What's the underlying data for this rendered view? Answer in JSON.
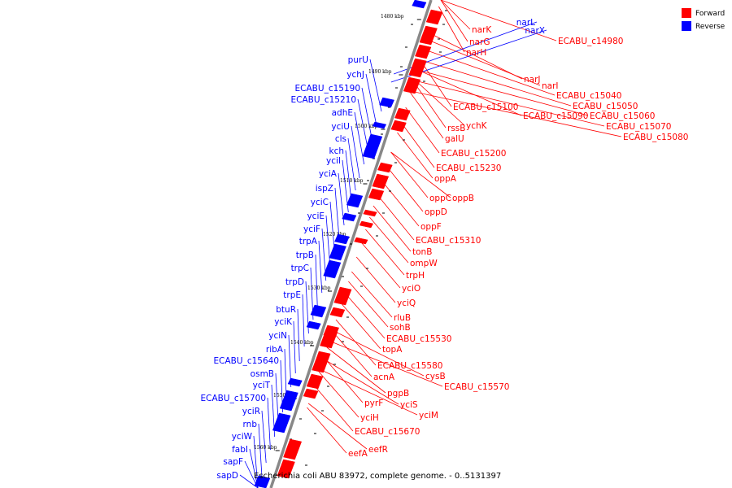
{
  "caption": "Escherichia coli ABU 83972, complete genome. - 0..5131397",
  "legend": [
    {
      "label": "Forward",
      "color": "#ff0000"
    },
    {
      "label": "Reverse",
      "color": "#0000ff"
    }
  ],
  "colors": {
    "forward": "#ff0000",
    "reverse": "#0000ff",
    "backbone": "#888888"
  },
  "ticks": [
    "1480 kbp",
    "1490 kbp",
    "1500 kbp",
    "1510 kbp",
    "1520 kbp",
    "1530 kbp",
    "1540 kbp",
    "1550 kbp",
    "1560 kbp"
  ],
  "forward_genes": [
    "narK",
    "narG",
    "narH",
    "narJ",
    "narI",
    "ECABU_c14980",
    "ECABU_c15040",
    "ECABU_c15050",
    "ECABU_c15060",
    "ECABU_c15070",
    "ECABU_c15080",
    "ECABU_c15090",
    "ECABU_c15100",
    "ychK",
    "rssB",
    "galU",
    "ECABU_c15200",
    "ECABU_c15230",
    "oppA",
    "oppB",
    "oppC",
    "oppD",
    "oppF",
    "ECABU_c15310",
    "tonB",
    "ompW",
    "trpH",
    "yciO",
    "yciQ",
    "rluB",
    "sohB",
    "ECABU_c15530",
    "topA",
    "ECABU_c15580",
    "cysB",
    "acnA",
    "ECABU_c15570",
    "pgpB",
    "yciS",
    "pyrF",
    "yciM",
    "yciH",
    "ECABU_c15670",
    "eefR",
    "eefA"
  ],
  "reverse_genes": [
    "narL",
    "narX",
    "purU",
    "ychJ",
    "ECABU_c15190",
    "ECABU_c15210",
    "adhE",
    "yciU",
    "cls",
    "kch",
    "yciI",
    "yciA",
    "ispZ",
    "yciC",
    "yciE",
    "yciF",
    "trpA",
    "trpB",
    "trpC",
    "trpD",
    "trpE",
    "btuR",
    "yciK",
    "yciN",
    "ribA",
    "ECABU_c15640",
    "osmB",
    "yciT",
    "ECABU_c15700",
    "yciR",
    "rnb",
    "yciW",
    "fabI",
    "sapF",
    "sapD"
  ]
}
